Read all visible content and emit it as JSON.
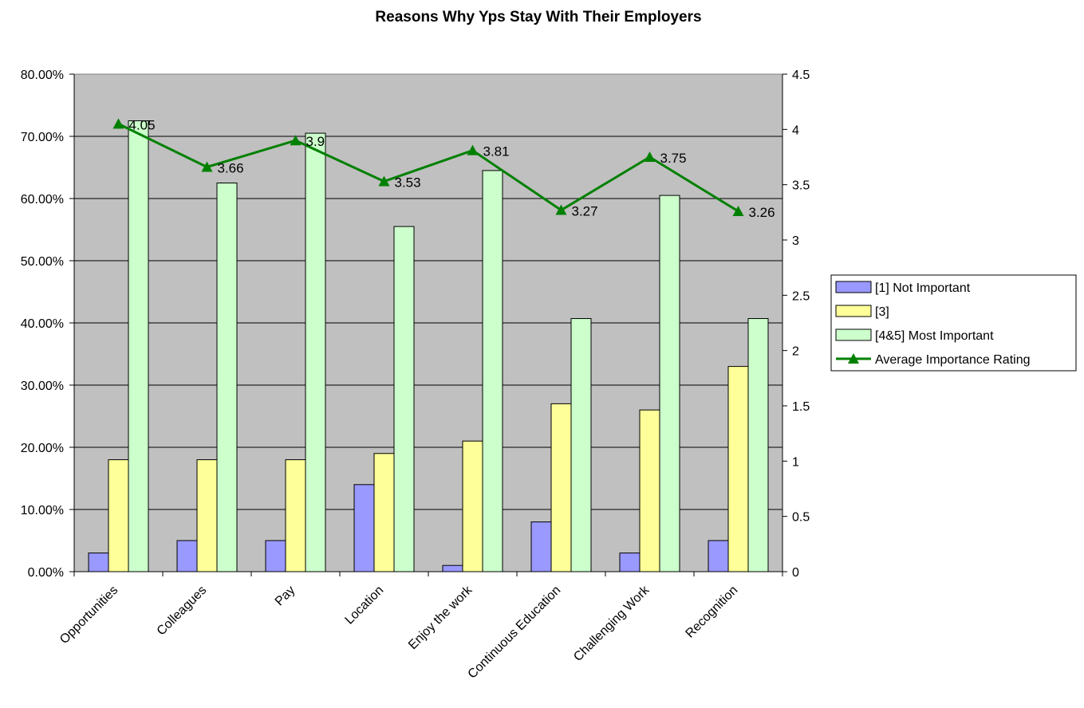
{
  "chart_data": {
    "type": "bar",
    "title": "Reasons Why Yps Stay With Their Employers",
    "categories": [
      "Opportunities",
      "Colleagues",
      "Pay",
      "Location",
      "Enjoy the work",
      "Continuous Education",
      "Challenging Work",
      "Recognition"
    ],
    "series": [
      {
        "name": "[1] Not Important",
        "type": "bar",
        "axis": "left",
        "color": "#9999ff",
        "values": [
          3,
          5,
          5,
          14,
          1,
          8,
          3,
          5
        ]
      },
      {
        "name": "[3]",
        "type": "bar",
        "axis": "left",
        "color": "#ffff99",
        "values": [
          18,
          18,
          18,
          19,
          21,
          27,
          26,
          33
        ]
      },
      {
        "name": "[4&5] Most Important",
        "type": "bar",
        "axis": "left",
        "color": "#ccffcc",
        "values": [
          72.5,
          62.5,
          70.5,
          55.5,
          64.5,
          40.7,
          60.5,
          40.7
        ]
      },
      {
        "name": "Average Importance Rating",
        "type": "line",
        "axis": "right",
        "color": "#008000",
        "values": [
          4.05,
          3.66,
          3.9,
          3.53,
          3.81,
          3.27,
          3.75,
          3.26
        ],
        "labels": [
          "4.05",
          "3.66",
          "3.9",
          "3.53",
          "3.81",
          "3.27",
          "3.75",
          "3.26"
        ]
      }
    ],
    "y_left": {
      "range": [
        0,
        80
      ],
      "ticks": [
        "0.00%",
        "10.00%",
        "20.00%",
        "30.00%",
        "40.00%",
        "50.00%",
        "60.00%",
        "70.00%",
        "80.00%"
      ]
    },
    "y_right": {
      "range": [
        0,
        4.5
      ],
      "ticks": [
        "0",
        "0.5",
        "1",
        "1.5",
        "2",
        "2.5",
        "3",
        "3.5",
        "4",
        "4.5"
      ]
    },
    "xlabel": "",
    "ylabel": "",
    "grid": true,
    "legend_position": "right",
    "plot_background": "#c0c0c0"
  }
}
